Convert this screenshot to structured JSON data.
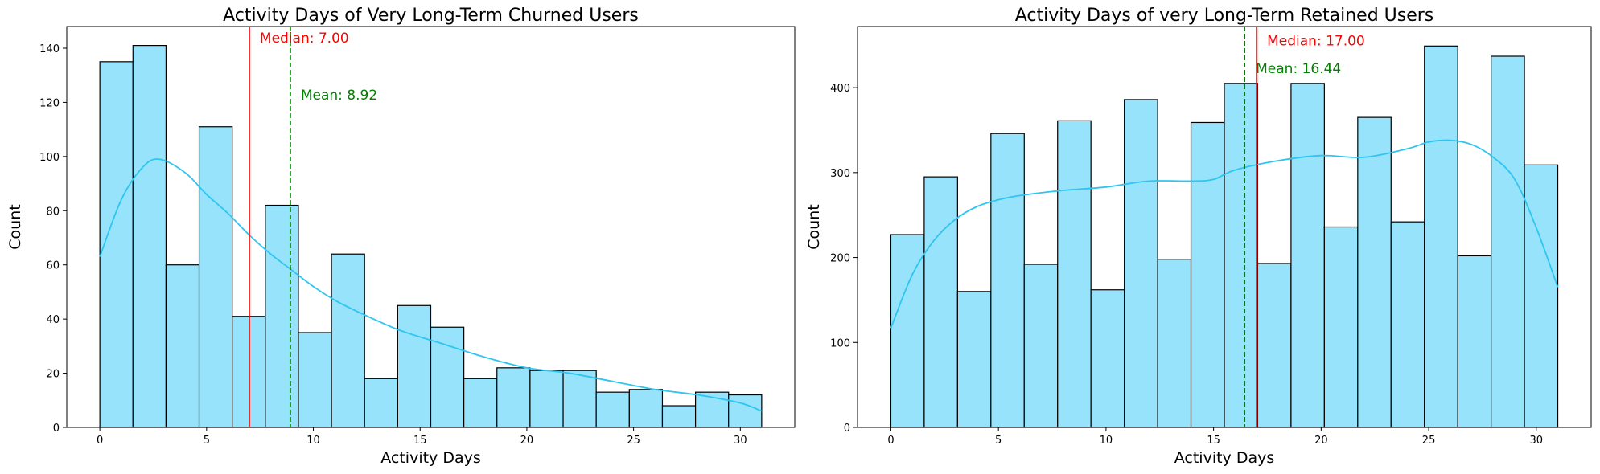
{
  "chart_data": [
    {
      "type": "bar",
      "title": "Activity Days of Very Long-Term Churned Users",
      "xlabel": "Activity Days",
      "ylabel": "Count",
      "xlim": [
        -1.55,
        32.55
      ],
      "ylim": [
        0,
        148
      ],
      "xticks": [
        0,
        5,
        10,
        15,
        20,
        25,
        30
      ],
      "yticks": [
        0,
        20,
        40,
        60,
        80,
        100,
        120,
        140
      ],
      "bin_edges": [
        0,
        1.55,
        3.1,
        4.65,
        6.2,
        7.75,
        9.3,
        10.85,
        12.4,
        13.95,
        15.5,
        17.05,
        18.6,
        20.15,
        21.7,
        23.25,
        24.8,
        26.35,
        27.9,
        29.45,
        31
      ],
      "values": [
        135,
        141,
        60,
        111,
        41,
        82,
        35,
        64,
        18,
        45,
        37,
        18,
        22,
        21,
        21,
        13,
        14,
        8,
        13,
        12
      ],
      "kde": {
        "x": [
          0,
          1,
          2,
          2.8,
          4,
          5,
          6,
          7,
          8,
          9,
          10,
          11,
          12,
          14,
          16,
          18,
          20,
          22,
          24,
          26,
          28,
          30,
          31
        ],
        "y": [
          63,
          84,
          96,
          99,
          94,
          86,
          79,
          71,
          64,
          58,
          52,
          47,
          43,
          36,
          31,
          26,
          22,
          20,
          17,
          14,
          12,
          9,
          6
        ]
      },
      "median": {
        "value": 7.0,
        "label": "Median: 7.00",
        "color": "#ff0000",
        "label_y": 142
      },
      "mean": {
        "value": 8.92,
        "label": "Mean: 8.92",
        "color": "#008000",
        "label_y": 121
      },
      "colors": {
        "bar_fill": "#97e3fb",
        "bar_edge": "#000000",
        "kde": "#2ec5f0"
      }
    },
    {
      "type": "bar",
      "title": "Activity Days of very Long-Term Retained Users",
      "xlabel": "Activity Days",
      "ylabel": "Count",
      "xlim": [
        -1.55,
        32.55
      ],
      "ylim": [
        0,
        472
      ],
      "xticks": [
        0,
        5,
        10,
        15,
        20,
        25,
        30
      ],
      "yticks": [
        0,
        100,
        200,
        300,
        400
      ],
      "bin_edges": [
        0,
        1.55,
        3.1,
        4.65,
        6.2,
        7.75,
        9.3,
        10.85,
        12.4,
        13.95,
        15.5,
        17.05,
        18.6,
        20.15,
        21.7,
        23.25,
        24.8,
        26.35,
        27.9,
        29.45,
        31
      ],
      "values": [
        227,
        295,
        160,
        346,
        192,
        361,
        162,
        386,
        198,
        359,
        405,
        193,
        405,
        236,
        365,
        242,
        449,
        202,
        437,
        309
      ],
      "kde": {
        "x": [
          0,
          1,
          2,
          3,
          4,
          5,
          6,
          8,
          10,
          12,
          14,
          15,
          16,
          18,
          20,
          22,
          24,
          25,
          26,
          27,
          28,
          29,
          30,
          31
        ],
        "y": [
          117,
          180,
          220,
          245,
          260,
          268,
          273,
          279,
          283,
          290,
          290,
          292,
          303,
          314,
          320,
          318,
          328,
          336,
          338,
          333,
          318,
          292,
          235,
          165
        ]
      },
      "median": {
        "value": 17.0,
        "label": "Median: 17.00",
        "color": "#ff0000",
        "label_y": 450
      },
      "mean": {
        "value": 16.44,
        "label": "Mean: 16.44",
        "color": "#008000",
        "label_y": 417
      },
      "colors": {
        "bar_fill": "#97e3fb",
        "bar_edge": "#000000",
        "kde": "#2ec5f0"
      }
    }
  ]
}
